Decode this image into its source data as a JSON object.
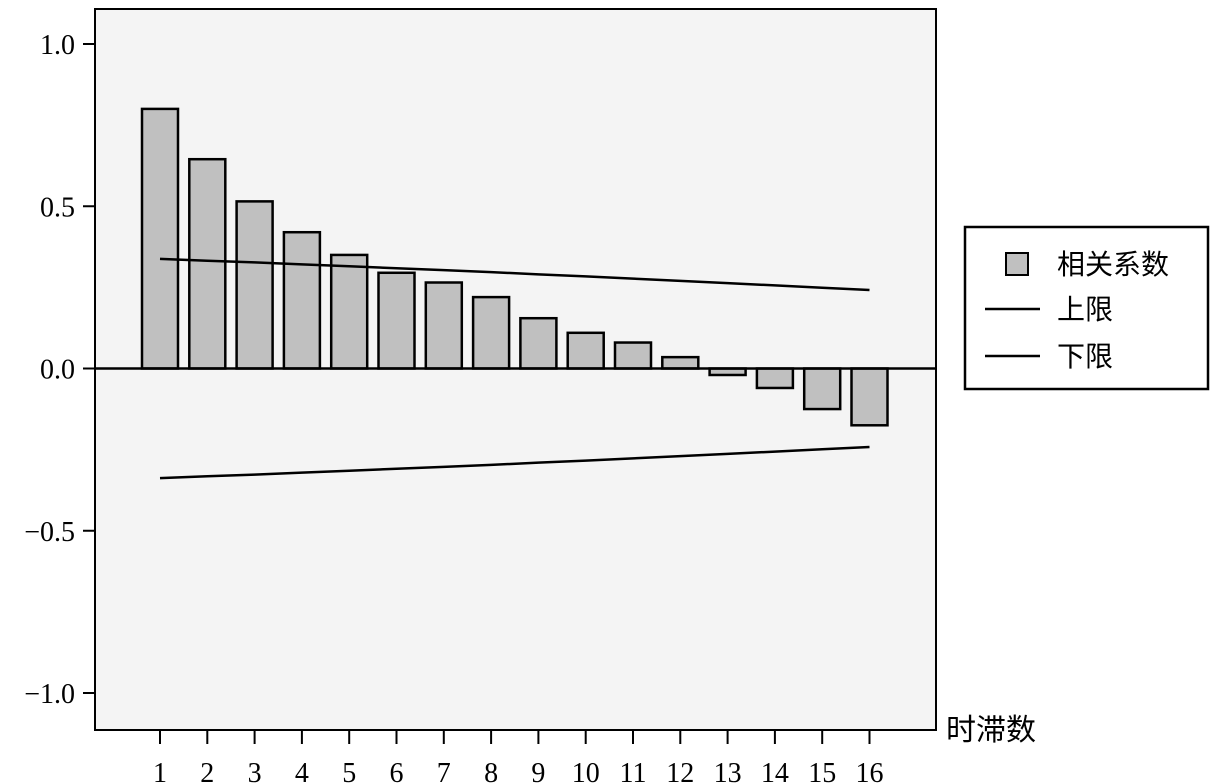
{
  "chart_data": {
    "type": "bar",
    "title": "",
    "xlabel": "时滞数",
    "ylabel": "",
    "categories": [
      "1",
      "2",
      "3",
      "4",
      "5",
      "6",
      "7",
      "8",
      "9",
      "10",
      "11",
      "12",
      "13",
      "14",
      "15",
      "16"
    ],
    "series": [
      {
        "name": "相关系数",
        "values": [
          0.8,
          0.645,
          0.515,
          0.42,
          0.35,
          0.295,
          0.265,
          0.22,
          0.155,
          0.11,
          0.08,
          0.035,
          -0.02,
          -0.06,
          -0.125,
          -0.175
        ]
      }
    ],
    "upper_limit": {
      "name": "上限",
      "values": [
        0.338,
        0.332,
        0.327,
        0.321,
        0.315,
        0.309,
        0.303,
        0.297,
        0.29,
        0.284,
        0.277,
        0.27,
        0.263,
        0.256,
        0.249,
        0.242
      ]
    },
    "lower_limit": {
      "name": "下限",
      "values": [
        -0.338,
        -0.332,
        -0.327,
        -0.321,
        -0.315,
        -0.309,
        -0.303,
        -0.297,
        -0.29,
        -0.284,
        -0.277,
        -0.27,
        -0.263,
        -0.256,
        -0.249,
        -0.242
      ]
    },
    "ylim": [
      -1.1,
      1.1
    ],
    "yticks": [
      1.0,
      0.5,
      0.0,
      -0.5,
      -1.0
    ],
    "ytick_labels": [
      "1.0",
      "0.5",
      "0.0",
      "−0.5",
      "−1.0"
    ],
    "grid": false,
    "legend_position": "right",
    "colors": {
      "bar_fill": "#c0c0c0",
      "bar_stroke": "#000000",
      "plot_background": "#f4f4f4",
      "line": "#000000"
    }
  }
}
